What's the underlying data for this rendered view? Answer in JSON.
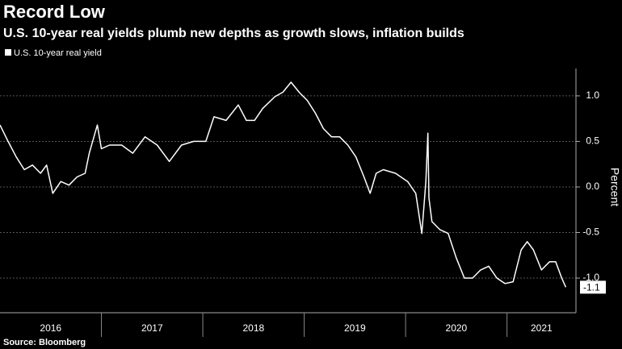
{
  "chart_data": {
    "type": "line",
    "title": "Record Low",
    "subtitle": "U.S. 10-year real yields plumb new depths as growth slows, inflation builds",
    "y_label": "Percent",
    "source": "Source: Bloomberg",
    "x": [
      2016.0,
      2016.08,
      2016.16,
      2016.24,
      2016.32,
      2016.4,
      2016.46,
      2016.52,
      2016.6,
      2016.68,
      2016.76,
      2016.84,
      2016.88,
      2016.96,
      2017.0,
      2017.08,
      2017.2,
      2017.31,
      2017.43,
      2017.55,
      2017.67,
      2017.79,
      2017.91,
      2018.03,
      2018.11,
      2018.23,
      2018.35,
      2018.43,
      2018.51,
      2018.59,
      2018.71,
      2018.79,
      2018.87,
      2018.95,
      2019.03,
      2019.11,
      2019.19,
      2019.27,
      2019.35,
      2019.43,
      2019.51,
      2019.59,
      2019.65,
      2019.71,
      2019.78,
      2019.9,
      2020.02,
      2020.1,
      2020.16,
      2020.2,
      2020.22,
      2020.23,
      2020.26,
      2020.34,
      2020.42,
      2020.5,
      2020.58,
      2020.66,
      2020.74,
      2020.82,
      2020.9,
      2020.98,
      2021.06,
      2021.14,
      2021.2,
      2021.26,
      2021.34,
      2021.42,
      2021.48,
      2021.54,
      2021.58
    ],
    "series": [
      {
        "name": "U.S. 10-year real yield",
        "color": "#ffffff",
        "values": [
          0.68,
          0.5,
          0.33,
          0.19,
          0.24,
          0.15,
          0.24,
          -0.07,
          0.06,
          0.02,
          0.11,
          0.15,
          0.37,
          0.68,
          0.42,
          0.46,
          0.46,
          0.37,
          0.55,
          0.46,
          0.28,
          0.46,
          0.5,
          0.5,
          0.77,
          0.73,
          0.9,
          0.73,
          0.73,
          0.86,
          0.99,
          1.04,
          1.15,
          1.04,
          0.95,
          0.81,
          0.64,
          0.55,
          0.55,
          0.46,
          0.33,
          0.11,
          -0.07,
          0.15,
          0.19,
          0.15,
          0.06,
          -0.07,
          -0.51,
          0.06,
          0.59,
          -0.12,
          -0.38,
          -0.47,
          -0.51,
          -0.78,
          -1.0,
          -1.0,
          -0.91,
          -0.87,
          -1.0,
          -1.06,
          -1.04,
          -0.69,
          -0.6,
          -0.69,
          -0.91,
          -0.82,
          -0.82,
          -1.0,
          -1.1
        ]
      }
    ],
    "xlim": [
      2016,
      2021.68
    ],
    "xticks": [
      {
        "value": 2016.5,
        "label": "2016"
      },
      {
        "value": 2017.5,
        "label": "2017"
      },
      {
        "value": 2018.5,
        "label": "2018"
      },
      {
        "value": 2019.5,
        "label": "2019"
      },
      {
        "value": 2020.5,
        "label": "2020"
      },
      {
        "value": 2021.34,
        "label": "2021"
      }
    ],
    "ylim": [
      -1.38,
      1.3
    ],
    "yticks": [
      {
        "value": 1,
        "label": "1.0"
      },
      0.5,
      {
        "value": 0,
        "label": "0.0"
      },
      -0.5,
      {
        "value": -1,
        "label": "-1.0"
      }
    ],
    "grid": true
  }
}
